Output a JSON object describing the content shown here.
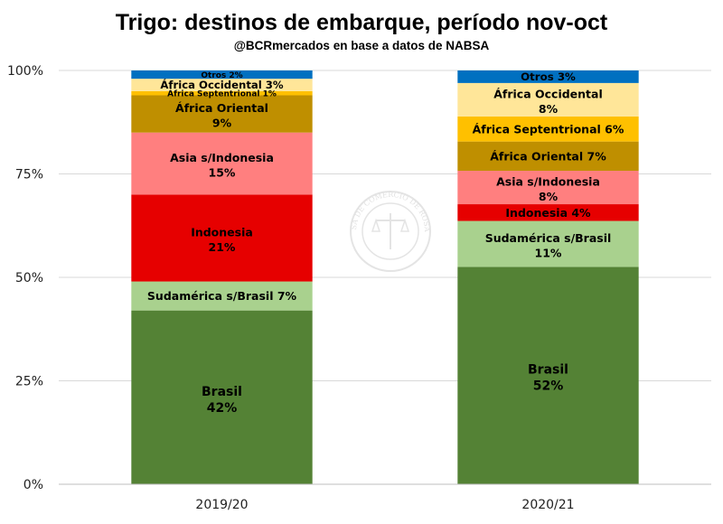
{
  "chart_data": {
    "type": "bar",
    "stacked": true,
    "title": "Trigo: destinos de embarque, período nov-oct",
    "subtitle": "@BCRmercados en base a datos de NABSA",
    "watermark": "BOLSA DE COMERCIO DE ROSARIO",
    "categories": [
      "2019/20",
      "2020/21"
    ],
    "ylim": [
      0,
      100
    ],
    "yticks": [
      "0%",
      "25%",
      "50%",
      "75%",
      "100%"
    ],
    "grid": true,
    "legend": "none",
    "series": [
      {
        "name": "Brasil",
        "color": "#548235",
        "values": [
          42,
          52
        ],
        "labels": [
          "42%",
          "52%"
        ],
        "text_color": "#000000"
      },
      {
        "name": "Sudamérica s/Brasil",
        "color": "#a9d18e",
        "values": [
          7,
          11
        ],
        "labels": [
          "7%",
          "11%"
        ],
        "text_color": "#000000"
      },
      {
        "name": "Indonesia",
        "color": "#e60000",
        "values": [
          21,
          4
        ],
        "labels": [
          "21%",
          "4%"
        ],
        "text_color": "#000000"
      },
      {
        "name": "Asia s/Indonesia",
        "color": "#ff7f7f",
        "values": [
          15,
          8
        ],
        "labels": [
          "15%",
          "8%"
        ],
        "text_color": "#000000"
      },
      {
        "name": "África Oriental",
        "color": "#bf8f00",
        "values": [
          9,
          7
        ],
        "labels": [
          "9%",
          "7%"
        ],
        "text_color": "#000000"
      },
      {
        "name": "África Septentrional",
        "color": "#ffc000",
        "values": [
          1,
          6
        ],
        "labels": [
          "1%",
          "6%"
        ],
        "text_color": "#000000"
      },
      {
        "name": "África Occidental",
        "color": "#ffe699",
        "values": [
          3,
          8
        ],
        "labels": [
          "3%",
          "8%"
        ],
        "text_color": "#000000"
      },
      {
        "name": "Otros",
        "color": "#0070c0",
        "values": [
          2,
          3
        ],
        "labels": [
          "2%",
          "3%"
        ],
        "text_color": "#000000"
      }
    ]
  }
}
